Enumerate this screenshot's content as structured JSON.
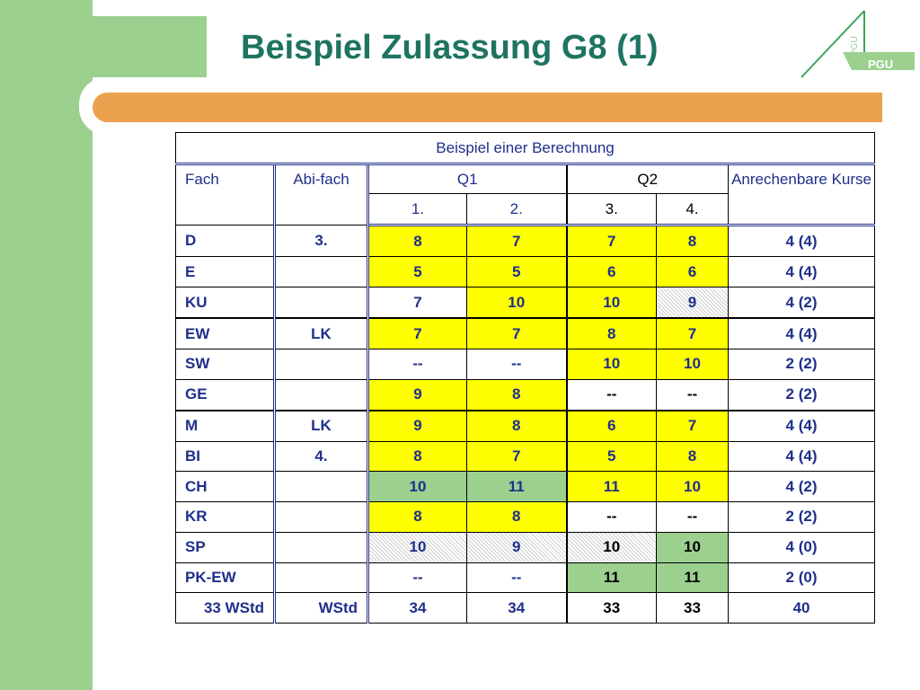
{
  "title": "Beispiel Zulassung G8 (1)",
  "logo": {
    "text": "PGU",
    "vertical_text": "PGU"
  },
  "table": {
    "caption": "Beispiel einer  Berechnung",
    "headers": {
      "fach": "Fach",
      "abifach": "Abi-fach",
      "q1": "Q1",
      "q2": "Q2",
      "anrechenbar": "Anrechenbare Kurse",
      "sem1": "1.",
      "sem2": "2.",
      "sem3": "3.",
      "sem4": "4."
    },
    "rows": [
      {
        "fach": "D",
        "abi": "3.",
        "s1": "8",
        "s2": "7",
        "s3": "7",
        "s4": "8",
        "kurse": "4 (4)"
      },
      {
        "fach": "E",
        "abi": "",
        "s1": "5",
        "s2": "5",
        "s3": "6",
        "s4": "6",
        "kurse": "4 (4)"
      },
      {
        "fach": "KU",
        "abi": "",
        "s1": "7",
        "s2": "10",
        "s3": "10",
        "s4": "9",
        "kurse": "4 (2)"
      },
      {
        "fach": "EW",
        "abi": "LK",
        "s1": "7",
        "s2": "7",
        "s3": "8",
        "s4": "7",
        "kurse": "4 (4)"
      },
      {
        "fach": "SW",
        "abi": "",
        "s1": "--",
        "s2": "--",
        "s3": "10",
        "s4": "10",
        "kurse": "2 (2)"
      },
      {
        "fach": "GE",
        "abi": "",
        "s1": "9",
        "s2": "8",
        "s3": "--",
        "s4": "--",
        "kurse": "2 (2)"
      },
      {
        "fach": "M",
        "abi": "LK",
        "s1": "9",
        "s2": "8",
        "s3": "6",
        "s4": "7",
        "kurse": "4 (4)"
      },
      {
        "fach": "BI",
        "abi": "4.",
        "s1": "8",
        "s2": "7",
        "s3": "5",
        "s4": "8",
        "kurse": "4 (4)"
      },
      {
        "fach": "CH",
        "abi": "",
        "s1": "10",
        "s2": "11",
        "s3": "11",
        "s4": "10",
        "kurse": "4 (2)"
      },
      {
        "fach": "KR",
        "abi": "",
        "s1": "8",
        "s2": "8",
        "s3": "--",
        "s4": "--",
        "kurse": "2 (2)"
      },
      {
        "fach": "SP",
        "abi": "",
        "s1": "10",
        "s2": "9",
        "s3": "10",
        "s4": "10",
        "kurse": "4 (0)"
      },
      {
        "fach": "PK-EW",
        "abi": "",
        "s1": "--",
        "s2": "--",
        "s3": "11",
        "s4": "11",
        "kurse": "2 (0)"
      }
    ],
    "footer": {
      "fach": "33 WStd",
      "abi": "WStd",
      "s1": "34",
      "s2": "34",
      "s3": "33",
      "s4": "33",
      "kurse": "40"
    }
  },
  "colors": {
    "title": "#1e7460",
    "side_green": "#9bd08f",
    "orange": "#eba24e",
    "cell_yellow": "#ffff00",
    "cell_green": "#9bd08f",
    "text_blue": "#1f2f8a"
  }
}
